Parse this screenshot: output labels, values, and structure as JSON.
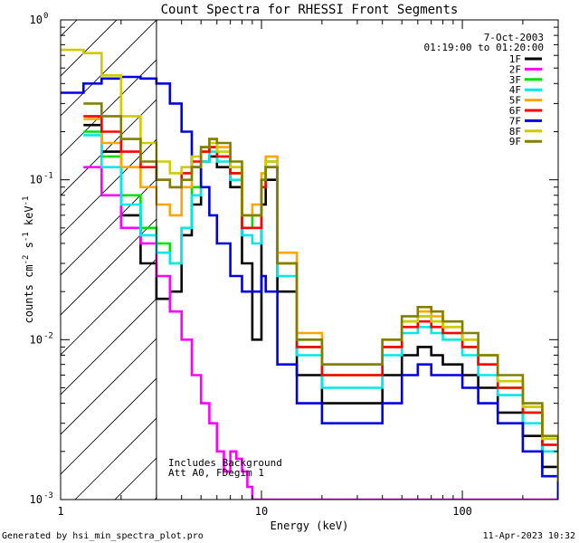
{
  "chart_data": {
    "type": "line",
    "title": "Count Spectra for RHESSI Front Segments",
    "xlabel": "Energy (keV)",
    "ylabel_parts": [
      "counts cm",
      "-2",
      " s",
      "-1",
      " keV",
      "-1"
    ],
    "xscale": "log",
    "yscale": "log",
    "xlim": [
      1.0,
      300.0
    ],
    "ylim": [
      0.001,
      1.0
    ],
    "x_tick_labels": [
      {
        "value": 1,
        "label": "1"
      },
      {
        "value": 10,
        "label": "10"
      },
      {
        "value": 100,
        "label": "100"
      }
    ],
    "y_tick_labels": [
      {
        "value": 1.0,
        "base": "10",
        "exp": "0"
      },
      {
        "value": 0.1,
        "base": "10",
        "exp": "-1"
      },
      {
        "value": 0.01,
        "base": "10",
        "exp": "-2"
      },
      {
        "value": 0.001,
        "base": "10",
        "exp": "-3"
      }
    ],
    "date_label": "7-Oct-2003",
    "time_range_label": "01:19:00 to 01:20:00",
    "attenuator_cutoff_kev": 3.0,
    "annotations": [
      "Includes Background",
      "Att A0, FDegim 1"
    ],
    "footer_left": "Generated by hsi_min_spectra_plot.pro",
    "footer_right": "11-Apr-2023 10:32",
    "series": [
      {
        "name": "1F",
        "color": "#000000",
        "x": [
          1.3,
          1.6,
          2.0,
          2.5,
          3.0,
          3.5,
          4.0,
          4.5,
          5.0,
          5.5,
          6.0,
          7.0,
          8.0,
          9.0,
          10.0,
          10.5,
          12.0,
          15.0,
          20.0,
          25.0,
          30.0,
          40.0,
          50.0,
          60.0,
          70.0,
          80.0,
          100.0,
          120.0,
          150.0,
          200.0,
          250.0,
          300.0
        ],
        "y": [
          0.22,
          0.15,
          0.06,
          0.03,
          0.018,
          0.02,
          0.045,
          0.07,
          0.13,
          0.14,
          0.12,
          0.09,
          0.03,
          0.01,
          0.07,
          0.1,
          0.02,
          0.006,
          0.004,
          0.004,
          0.004,
          0.006,
          0.008,
          0.009,
          0.008,
          0.007,
          0.006,
          0.005,
          0.0035,
          0.0025,
          0.0016,
          0.001
        ]
      },
      {
        "name": "2F",
        "color": "#ff00ff",
        "x": [
          1.3,
          1.6,
          2.0,
          2.5,
          3.0,
          3.5,
          4.0,
          4.5,
          5.0,
          5.5,
          6.0,
          6.5,
          7.0,
          7.5,
          8.0,
          8.5,
          9.0
        ],
        "y": [
          0.12,
          0.08,
          0.05,
          0.04,
          0.025,
          0.015,
          0.01,
          0.006,
          0.004,
          0.003,
          0.002,
          0.0015,
          0.002,
          0.0018,
          0.0015,
          0.0012,
          0.001
        ]
      },
      {
        "name": "3F",
        "color": "#00e000",
        "x": [
          1.3,
          1.6,
          2.0,
          2.5,
          3.0,
          3.5,
          4.0,
          4.5,
          5.0,
          5.5,
          6.0,
          7.0,
          8.0,
          9.0,
          10.0,
          10.5,
          12.0,
          15.0,
          20.0,
          25.0,
          30.0,
          40.0,
          50.0,
          60.0,
          70.0,
          80.0,
          100.0,
          120.0,
          150.0,
          200.0,
          250.0,
          300.0
        ],
        "y": [
          0.2,
          0.14,
          0.08,
          0.05,
          0.04,
          0.03,
          0.05,
          0.09,
          0.15,
          0.16,
          0.14,
          0.11,
          0.05,
          0.06,
          0.1,
          0.13,
          0.03,
          0.009,
          0.006,
          0.006,
          0.006,
          0.009,
          0.013,
          0.014,
          0.013,
          0.011,
          0.009,
          0.007,
          0.005,
          0.0035,
          0.0022,
          0.0012
        ]
      },
      {
        "name": "4F",
        "color": "#00e8e8",
        "x": [
          1.3,
          1.6,
          2.0,
          2.5,
          3.0,
          3.5,
          4.0,
          4.5,
          5.0,
          5.5,
          6.0,
          7.0,
          8.0,
          9.0,
          10.0,
          10.5,
          12.0,
          15.0,
          20.0,
          25.0,
          30.0,
          40.0,
          50.0,
          60.0,
          70.0,
          80.0,
          100.0,
          120.0,
          150.0,
          200.0,
          250.0,
          300.0
        ],
        "y": [
          0.19,
          0.12,
          0.07,
          0.045,
          0.035,
          0.03,
          0.05,
          0.08,
          0.13,
          0.15,
          0.13,
          0.1,
          0.045,
          0.04,
          0.09,
          0.12,
          0.025,
          0.008,
          0.005,
          0.005,
          0.005,
          0.008,
          0.011,
          0.012,
          0.011,
          0.01,
          0.008,
          0.006,
          0.0045,
          0.003,
          0.002,
          0.0011
        ]
      },
      {
        "name": "5F",
        "color": "#ffa500",
        "x": [
          1.3,
          1.6,
          2.0,
          2.5,
          3.0,
          3.5,
          4.0,
          4.5,
          5.0,
          5.5,
          6.0,
          7.0,
          8.0,
          9.0,
          10.0,
          10.5,
          12.0,
          15.0,
          20.0,
          25.0,
          30.0,
          40.0,
          50.0,
          60.0,
          70.0,
          80.0,
          100.0,
          120.0,
          150.0,
          200.0,
          250.0,
          300.0
        ],
        "y": [
          0.24,
          0.17,
          0.12,
          0.09,
          0.07,
          0.06,
          0.09,
          0.12,
          0.16,
          0.18,
          0.16,
          0.12,
          0.06,
          0.07,
          0.11,
          0.14,
          0.035,
          0.011,
          0.007,
          0.007,
          0.007,
          0.01,
          0.014,
          0.015,
          0.014,
          0.012,
          0.01,
          0.008,
          0.0055,
          0.0038,
          0.0024,
          0.0013
        ]
      },
      {
        "name": "6F",
        "color": "#ff0000",
        "x": [
          1.3,
          1.6,
          2.0,
          2.5,
          3.0,
          3.5,
          4.0,
          4.5,
          5.0,
          5.5,
          6.0,
          7.0,
          8.0,
          9.0,
          10.0,
          10.5,
          12.0,
          15.0,
          20.0,
          25.0,
          30.0,
          40.0,
          50.0,
          60.0,
          70.0,
          80.0,
          100.0,
          120.0,
          150.0,
          200.0,
          250.0,
          300.0
        ],
        "y": [
          0.25,
          0.2,
          0.15,
          0.12,
          0.1,
          0.09,
          0.11,
          0.13,
          0.15,
          0.16,
          0.14,
          0.11,
          0.05,
          0.05,
          0.09,
          0.12,
          0.03,
          0.009,
          0.006,
          0.006,
          0.006,
          0.009,
          0.012,
          0.013,
          0.012,
          0.011,
          0.009,
          0.007,
          0.005,
          0.0035,
          0.0022,
          0.0012
        ]
      },
      {
        "name": "7F",
        "color": "#0000e0",
        "x": [
          1.0,
          1.3,
          1.6,
          2.0,
          2.5,
          3.0,
          3.5,
          4.0,
          4.5,
          5.0,
          5.5,
          6.0,
          7.0,
          8.0,
          9.0,
          10.0,
          10.5,
          12.0,
          15.0,
          20.0,
          25.0,
          30.0,
          40.0,
          50.0,
          60.0,
          70.0,
          80.0,
          100.0,
          120.0,
          150.0,
          200.0,
          250.0,
          300.0
        ],
        "y": [
          0.35,
          0.4,
          0.43,
          0.44,
          0.43,
          0.4,
          0.3,
          0.2,
          0.12,
          0.09,
          0.06,
          0.04,
          0.025,
          0.02,
          0.02,
          0.025,
          0.02,
          0.007,
          0.004,
          0.003,
          0.003,
          0.003,
          0.004,
          0.006,
          0.007,
          0.006,
          0.006,
          0.005,
          0.004,
          0.003,
          0.002,
          0.0014,
          0.001
        ]
      },
      {
        "name": "8F",
        "color": "#cccc00",
        "x": [
          1.0,
          1.3,
          1.6,
          2.0,
          2.5,
          3.0,
          3.5,
          4.0,
          4.5,
          5.0,
          5.5,
          6.0,
          7.0,
          8.0,
          9.0,
          10.0,
          10.5,
          12.0,
          15.0,
          20.0,
          25.0,
          30.0,
          40.0,
          50.0,
          60.0,
          70.0,
          80.0,
          100.0,
          120.0,
          150.0,
          200.0,
          250.0,
          300.0
        ],
        "y": [
          0.65,
          0.62,
          0.45,
          0.25,
          0.17,
          0.13,
          0.11,
          0.12,
          0.14,
          0.16,
          0.17,
          0.15,
          0.12,
          0.06,
          0.06,
          0.1,
          0.13,
          0.03,
          0.01,
          0.007,
          0.007,
          0.007,
          0.01,
          0.013,
          0.014,
          0.013,
          0.012,
          0.01,
          0.008,
          0.0055,
          0.0038,
          0.0024,
          0.0013
        ]
      },
      {
        "name": "9F",
        "color": "#808000",
        "x": [
          1.3,
          1.6,
          2.0,
          2.5,
          3.0,
          3.5,
          4.0,
          4.5,
          5.0,
          5.5,
          6.0,
          7.0,
          8.0,
          9.0,
          10.0,
          10.5,
          12.0,
          15.0,
          20.0,
          25.0,
          30.0,
          40.0,
          50.0,
          60.0,
          70.0,
          80.0,
          100.0,
          120.0,
          150.0,
          200.0,
          250.0,
          300.0
        ],
        "y": [
          0.3,
          0.25,
          0.18,
          0.13,
          0.1,
          0.09,
          0.1,
          0.12,
          0.16,
          0.18,
          0.17,
          0.13,
          0.06,
          0.06,
          0.1,
          0.12,
          0.03,
          0.01,
          0.007,
          0.007,
          0.007,
          0.01,
          0.014,
          0.016,
          0.015,
          0.013,
          0.011,
          0.008,
          0.006,
          0.004,
          0.0025,
          0.0013
        ]
      }
    ]
  }
}
